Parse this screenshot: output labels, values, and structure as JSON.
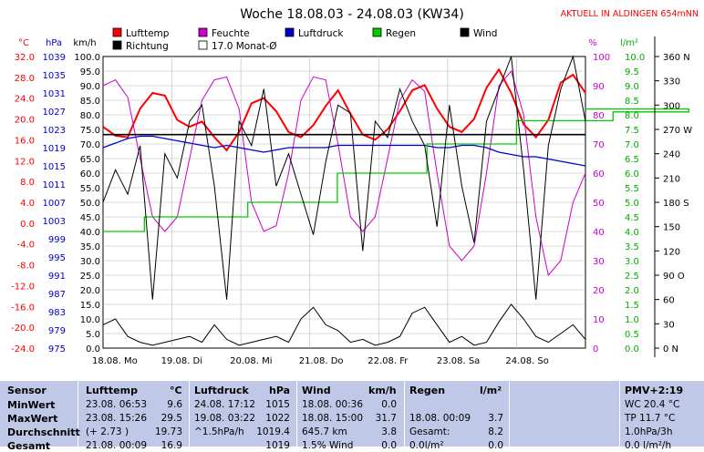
{
  "header": {
    "title": "Woche 18.08.03 - 24.08.03 (KW34)",
    "station": "AKTUELL IN ALDINGEN 654mNN"
  },
  "colors": {
    "temp": "#ff0000",
    "humidity": "#cc00cc",
    "pressure": "#0000cc",
    "rain": "#00cc00",
    "wind": "#000000",
    "direction": "#000000",
    "footer_bg": "#c0c8e8"
  },
  "chart_data": {
    "type": "line",
    "title": "Woche 18.08.03 - 24.08.03 (KW34)",
    "axes": {
      "temp": {
        "unit": "°C",
        "min": -24,
        "max": 32,
        "ticks": [
          "32.0",
          "28.0",
          "24.0",
          "20.0",
          "16.0",
          "12.0",
          "8.0",
          "4.0",
          "0.0",
          "-4.0",
          "-8.0",
          "-12.0",
          "-16.0",
          "-20.0",
          "-24.0"
        ]
      },
      "pressure": {
        "unit": "hPa",
        "min": 975,
        "max": 1039,
        "ticks": [
          "1039",
          "1035",
          "1031",
          "1027",
          "1023",
          "1019",
          "1015",
          "1011",
          "1007",
          "1003",
          "999",
          "995",
          "991",
          "987",
          "983",
          "979",
          "975"
        ]
      },
      "wind": {
        "unit": "km/h",
        "min": 0,
        "max": 100,
        "ticks": [
          "100.0",
          "95.0",
          "90.0",
          "85.0",
          "80.0",
          "75.0",
          "70.0",
          "65.0",
          "60.0",
          "55.0",
          "50.0",
          "45.0",
          "40.0",
          "35.0",
          "30.0",
          "25.0",
          "20.0",
          "15.0",
          "10.0",
          "5.0",
          "0.0"
        ]
      },
      "humidity": {
        "unit": "%",
        "min": 0,
        "max": 100,
        "ticks": [
          "100",
          "90",
          "80",
          "70",
          "60",
          "50",
          "40",
          "30",
          "20",
          "10",
          "0"
        ]
      },
      "rain": {
        "unit": "l/m²",
        "min": 0,
        "max": 10,
        "ticks": [
          "10.0",
          "9.5",
          "9.0",
          "8.5",
          "8.0",
          "7.5",
          "7.0",
          "6.5",
          "6.0",
          "5.5",
          "5.0",
          "4.5",
          "4.0",
          "3.5",
          "3.0",
          "2.5",
          "2.0",
          "1.5",
          "1.0",
          "0.5",
          "0.0"
        ]
      },
      "direction": {
        "ticks": [
          "360 N",
          "330",
          "300",
          "270 W",
          "240",
          "210",
          "180 S",
          "150",
          "120",
          "90 O",
          "60",
          "30",
          "0 N"
        ]
      },
      "x": {
        "ticks": [
          "18.08. Mo",
          "19.08. Di",
          "20.08. Mi",
          "21.08. Do",
          "22.08. Fr",
          "23.08. Sa",
          "24.08. So"
        ]
      }
    },
    "legend": [
      {
        "label": "Lufttemp",
        "color": "#ff0000"
      },
      {
        "label": "Feuchte",
        "color": "#cc00cc"
      },
      {
        "label": "Luftdruck",
        "color": "#0000cc"
      },
      {
        "label": "Regen",
        "color": "#00cc00"
      },
      {
        "label": "Wind",
        "color": "#000000"
      },
      {
        "label": "Richtung",
        "color": "#000000"
      },
      {
        "label": "17.0 Monat-Ø",
        "color": "#ffffff"
      }
    ],
    "series": [
      {
        "name": "Lufttemp",
        "axis": "temp",
        "values": [
          18.5,
          16.8,
          16.5,
          22,
          25,
          24.5,
          19.8,
          18.5,
          19.5,
          16.5,
          14,
          17.5,
          23,
          24,
          21.5,
          17.5,
          16.5,
          18.8,
          22.5,
          25.5,
          21,
          17,
          16,
          18,
          21.5,
          25.5,
          26.5,
          22,
          18.5,
          17.5,
          20,
          26,
          29.5,
          25,
          19,
          16.5,
          19.8,
          27,
          28.5,
          25
        ]
      },
      {
        "name": "Feuchte",
        "axis": "humidity",
        "values": [
          90,
          92,
          86,
          65,
          45,
          40,
          45,
          65,
          85,
          92,
          93,
          82,
          50,
          40,
          42,
          60,
          85,
          93,
          92,
          70,
          45,
          40,
          45,
          65,
          85,
          92,
          88,
          60,
          35,
          30,
          35,
          60,
          90,
          95,
          80,
          45,
          25,
          30,
          50,
          60
        ]
      },
      {
        "name": "Luftdruck",
        "axis": "pressure",
        "values": [
          1019,
          1020,
          1021,
          1021.5,
          1021.5,
          1021,
          1020.5,
          1020,
          1019.5,
          1019,
          1019.5,
          1019,
          1018.5,
          1018,
          1018.5,
          1019,
          1019,
          1019,
          1019,
          1019.5,
          1019.5,
          1019.5,
          1019.5,
          1019.5,
          1019.5,
          1019.5,
          1019.5,
          1019,
          1019,
          1019.5,
          1019.5,
          1019,
          1018,
          1017.5,
          1017,
          1017,
          1016.5,
          1016,
          1015.5,
          1015
        ]
      },
      {
        "name": "Regen",
        "axis": "rain",
        "steps": [
          [
            0,
            4
          ],
          [
            0.6,
            4.5
          ],
          [
            2.1,
            5.0
          ],
          [
            3.4,
            6.0
          ],
          [
            4.7,
            7.0
          ],
          [
            6.0,
            7.8
          ],
          [
            7.4,
            8.1
          ],
          [
            8.5,
            8.2
          ]
        ]
      },
      {
        "name": "Wind",
        "axis": "wind",
        "values": [
          8,
          10,
          4,
          2,
          1,
          2,
          3,
          4,
          2,
          8,
          3,
          1,
          2,
          3,
          4,
          2,
          10,
          14,
          8,
          6,
          2,
          3,
          1,
          2,
          4,
          12,
          14,
          8,
          2,
          4,
          1,
          2,
          9,
          15,
          10,
          4,
          2,
          5,
          8,
          3
        ]
      },
      {
        "name": "Richtung",
        "axis": "direction",
        "values": [
          180,
          220,
          190,
          250,
          60,
          240,
          210,
          280,
          300,
          200,
          60,
          280,
          250,
          320,
          200,
          240,
          190,
          140,
          230,
          300,
          290,
          120,
          280,
          260,
          320,
          280,
          250,
          150,
          300,
          200,
          130,
          280,
          320,
          360,
          220,
          60,
          250,
          320,
          360,
          280
        ]
      },
      {
        "name": "17.0 Monat-Ø",
        "axis": "temp",
        "constant": 17.0
      }
    ]
  },
  "footer": {
    "sensor": {
      "title": "Sensor",
      "rows": [
        "MinWert",
        "MaxWert",
        "Durchschnitt",
        "Gesamt"
      ]
    },
    "temp": {
      "title": "Lufttemp",
      "unit": "°C",
      "rows": [
        {
          "a": "23.08.  06:53",
          "b": "9.6"
        },
        {
          "a": "23.08.  15:26",
          "b": "29.5"
        },
        {
          "a": "(+ 2.73 )",
          "b": "19.73"
        },
        {
          "a": "21.08.  00:09",
          "b": "16.9"
        }
      ]
    },
    "pressure": {
      "title": "Luftdruck",
      "unit": "hPa",
      "rows": [
        {
          "a": "24.08.  17:12",
          "b": "1015"
        },
        {
          "a": "19.08.  03:22",
          "b": "1022"
        },
        {
          "a": "^1.5hPa/h",
          "b": "1019.4"
        },
        {
          "a": "",
          "b": "1019"
        }
      ]
    },
    "wind": {
      "title": "Wind",
      "unit": "km/h",
      "rows": [
        {
          "a": "18.08.  00:36",
          "b": "0.0"
        },
        {
          "a": "18.08.  15:00",
          "b": "31.7"
        },
        {
          "a": "645.7 km",
          "b": "3.8"
        },
        {
          "a": "1.5% Wind",
          "b": "0.0"
        }
      ]
    },
    "rain": {
      "title": "Regen",
      "unit": "l/m²",
      "rows": [
        {
          "a": "",
          "b": ""
        },
        {
          "a": "18.08.  00:09",
          "b": "3.7"
        },
        {
          "a": "Gesamt:",
          "b": "8.2"
        },
        {
          "a": "0.0l/m²",
          "b": "0.0"
        }
      ]
    },
    "pmv": {
      "title": "PMV+2:19",
      "rows": [
        "WC 20.4 °C",
        "TP 11.7 °C",
        "1.0hPa/3h",
        "0.0 l/m²/h"
      ]
    }
  }
}
